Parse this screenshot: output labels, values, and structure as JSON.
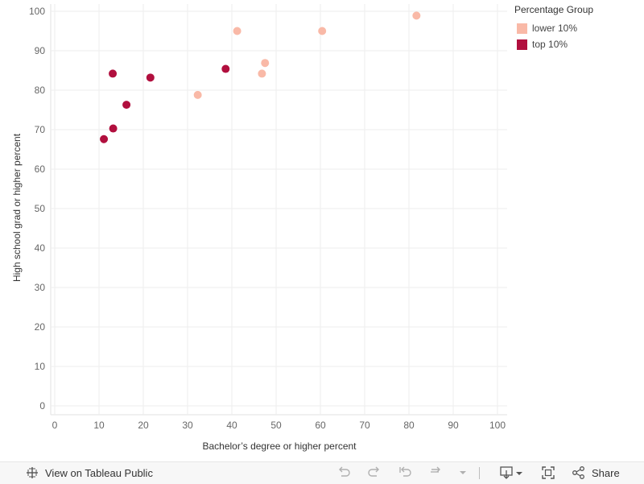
{
  "chart_data": {
    "type": "scatter",
    "xlabel": "Bachelor’s degree or higher percent",
    "ylabel": "High school grad or higher percent",
    "xlim": [
      0,
      100
    ],
    "ylim": [
      0,
      100
    ],
    "xticks": [
      0,
      10,
      20,
      30,
      40,
      50,
      60,
      70,
      80,
      90,
      100
    ],
    "yticks": [
      0,
      10,
      20,
      30,
      40,
      50,
      60,
      70,
      80,
      90,
      100
    ],
    "grid": true,
    "legend": {
      "title": "Percentage Group",
      "placement": "top-right",
      "items": [
        {
          "name": "lower 10%",
          "color": "#f9b9a7"
        },
        {
          "name": "top 10%",
          "color": "#b10f3e"
        }
      ]
    },
    "series": [
      {
        "name": "lower 10%",
        "color": "#f9b9a7",
        "points": [
          {
            "x": 32.3,
            "y": 78.8
          },
          {
            "x": 41.2,
            "y": 95.0
          },
          {
            "x": 46.8,
            "y": 84.2
          },
          {
            "x": 47.5,
            "y": 86.9
          },
          {
            "x": 60.4,
            "y": 95.0
          },
          {
            "x": 81.7,
            "y": 98.9
          }
        ]
      },
      {
        "name": "top 10%",
        "color": "#b10f3e",
        "points": [
          {
            "x": 11.1,
            "y": 67.6
          },
          {
            "x": 13.2,
            "y": 70.3
          },
          {
            "x": 13.1,
            "y": 84.2
          },
          {
            "x": 16.2,
            "y": 76.3
          },
          {
            "x": 21.6,
            "y": 83.2
          },
          {
            "x": 38.6,
            "y": 85.4
          }
        ]
      }
    ]
  },
  "toolbar": {
    "view_label": "View on Tableau Public",
    "share_label": "Share",
    "icons": [
      "tableau-icon",
      "undo-icon",
      "redo-icon",
      "revert-icon",
      "refresh-icon",
      "dropdown-icon",
      "download-icon",
      "fullscreen-icon",
      "share-icon"
    ]
  }
}
